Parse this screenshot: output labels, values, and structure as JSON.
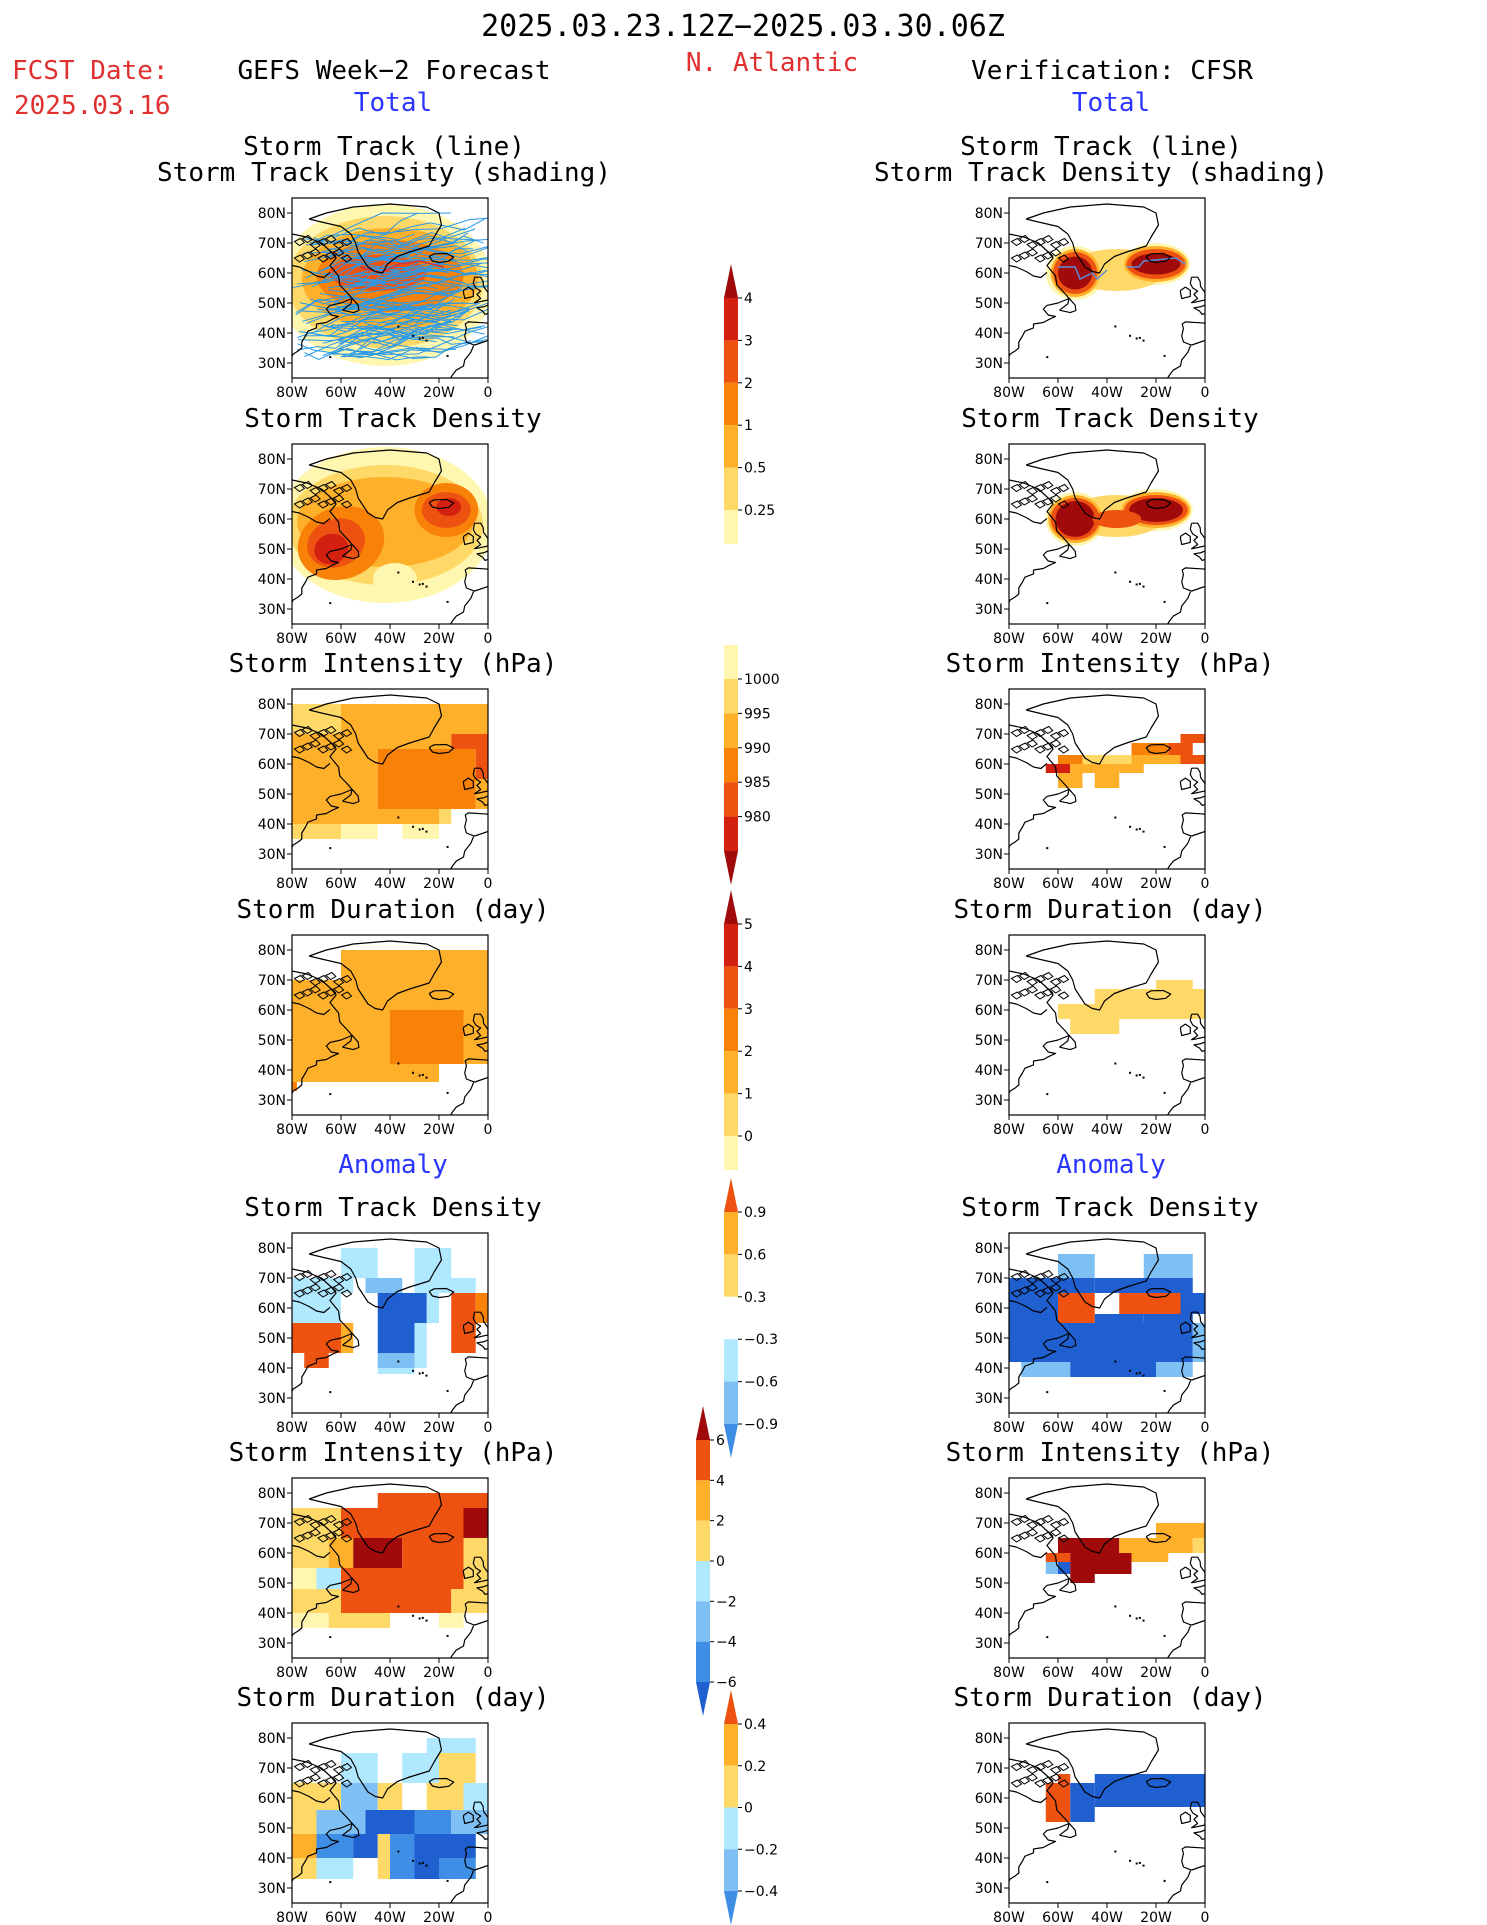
{
  "header": {
    "title": "2025.03.23.12Z−2025.03.30.06Z",
    "region": "N. Atlantic",
    "fcst_label": "FCST Date:",
    "fcst_date": "2025.03.16",
    "left_source": "GEFS Week−2 Forecast",
    "right_source": "Verification: CFSR",
    "total_label": "Total",
    "anomaly_label": "Anomaly"
  },
  "panel_titles": {
    "track_line": "Storm Track (line)",
    "track_shading": "Storm Track Density (shading)",
    "track_density": "Storm Track Density",
    "intensity": "Storm Intensity (hPa)",
    "duration": "Storm Duration (day)"
  },
  "axes": {
    "lat_ticks": [
      "80N",
      "70N",
      "60N",
      "50N",
      "40N",
      "30N"
    ],
    "lon_ticks": [
      "80W",
      "60W",
      "40W",
      "20W",
      "0"
    ]
  },
  "colors": {
    "c1": "#fff7b0",
    "c2": "#ffd968",
    "c3": "#ffb02a",
    "c4": "#f88208",
    "c5": "#ee5210",
    "c6": "#d42010",
    "c7": "#a00a0a",
    "b1": "#b0e8ff",
    "b2": "#7ec0f4",
    "b3": "#3e8ee6",
    "b4": "#1f5fd0",
    "track_blue": "#2a9ae8",
    "track_red": "#d83030"
  },
  "colorbars": [
    {
      "name": "total-density",
      "levels": [
        "4",
        "3",
        "2",
        "1",
        "0.5",
        "0.25"
      ]
    },
    {
      "name": "total-intensity",
      "levels": [
        "1000",
        "995",
        "990",
        "985",
        "980"
      ]
    },
    {
      "name": "total-duration",
      "levels": [
        "5",
        "4",
        "3",
        "2",
        "1",
        "0"
      ]
    },
    {
      "name": "anomaly-density",
      "levels": [
        "0.9",
        "0.6",
        "0.3",
        "−0.3",
        "−0.6",
        "−0.9"
      ]
    },
    {
      "name": "anomaly-intensity",
      "levels": [
        "6",
        "4",
        "2",
        "0",
        "−2",
        "−4",
        "−6"
      ]
    },
    {
      "name": "anomaly-duration",
      "levels": [
        "0.4",
        "0.2",
        "0",
        "−0.2",
        "−0.4"
      ]
    }
  ]
}
